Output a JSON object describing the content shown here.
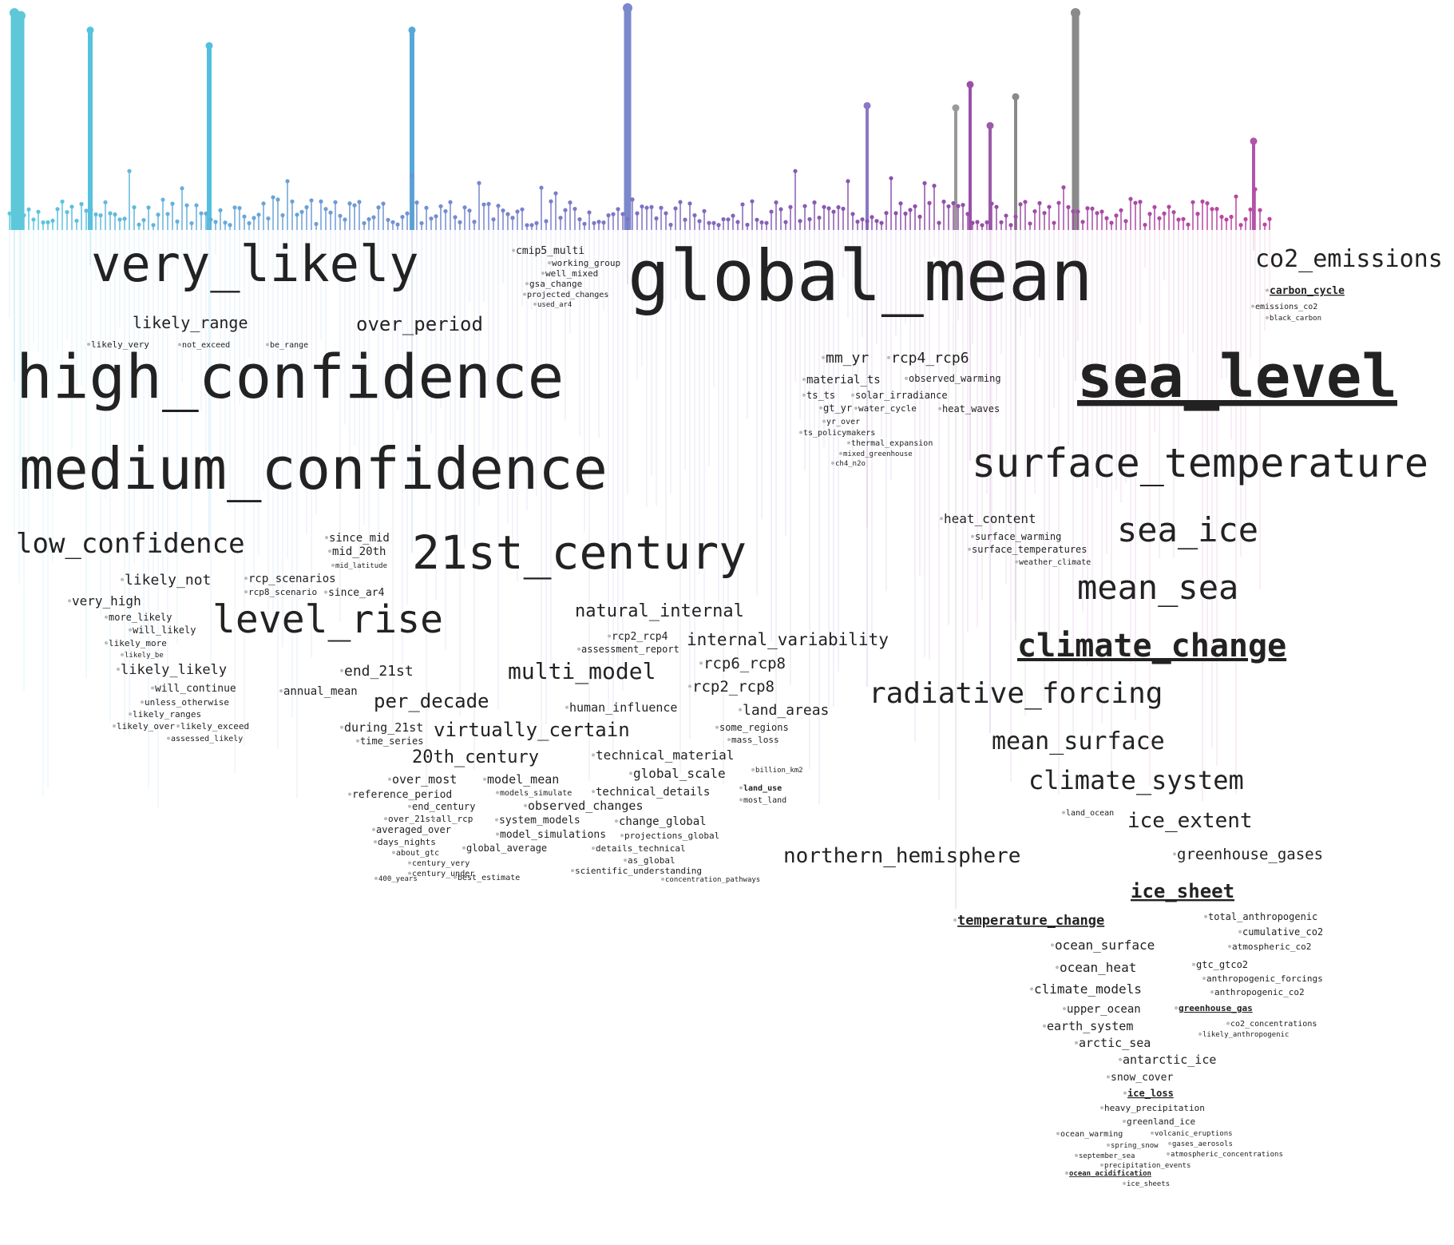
{
  "chart_data": {
    "type": "lollipop-word-cloud",
    "stems": [
      {
        "label": "high_confidence",
        "value": 0.978,
        "color": "#5ec8d8"
      },
      {
        "label": "medium_confidence",
        "value": 0.965,
        "color": "#5ec8d8"
      },
      {
        "label": "very_likely",
        "value": 0.9,
        "color": "#56c2dc"
      },
      {
        "label": "low_confidence",
        "value": 0.83,
        "color": "#52bfe0"
      },
      {
        "label": "21st_century",
        "value": 0.9,
        "color": "#56a8d8"
      },
      {
        "label": "global_mean",
        "value": 1.0,
        "color": "#7b88cc"
      },
      {
        "label": "radiative_forcing",
        "value": 0.56,
        "color": "#8a78c4"
      },
      {
        "label": "sea_level",
        "value": 0.978,
        "color": "#8a8a8a"
      },
      {
        "label": "surface_temperature",
        "value": 0.655,
        "color": "#9a4fa8"
      },
      {
        "label": "temperature_change",
        "value": 0.55,
        "color": "#999999"
      },
      {
        "label": "climate_change",
        "value": 0.6,
        "color": "#8a8a8a"
      },
      {
        "label": "mean_surface",
        "value": 0.47,
        "color": "#9a5aa8"
      },
      {
        "label": "co2_emissions",
        "value": 0.4,
        "color": "#b055a8"
      }
    ],
    "words": [
      {
        "t": "very_likely",
        "s": 62
      },
      {
        "t": "high_confidence",
        "s": 76
      },
      {
        "t": "medium_confidence",
        "s": 72
      },
      {
        "t": "low_confidence",
        "s": 34
      },
      {
        "t": "likely_range",
        "s": 20
      },
      {
        "t": "over_period",
        "s": 24
      },
      {
        "t": "likely_very",
        "s": 11
      },
      {
        "t": "not_exceed",
        "s": 10
      },
      {
        "t": "be_range",
        "s": 10
      },
      {
        "t": "21st_century",
        "s": 58
      },
      {
        "t": "level_rise",
        "s": 48
      },
      {
        "t": "likely_not",
        "s": 18
      },
      {
        "t": "very_high",
        "s": 16
      },
      {
        "t": "more_likely",
        "s": 12
      },
      {
        "t": "will_likely",
        "s": 12
      },
      {
        "t": "likely_more",
        "s": 11
      },
      {
        "t": "likely_be",
        "s": 9
      },
      {
        "t": "likely_likely",
        "s": 17
      },
      {
        "t": "will_continue",
        "s": 13
      },
      {
        "t": "unless_otherwise",
        "s": 11
      },
      {
        "t": "likely_ranges",
        "s": 11
      },
      {
        "t": "likely_over",
        "s": 11
      },
      {
        "t": "likely_exceed",
        "s": 11
      },
      {
        "t": "assessed_likely",
        "s": 10
      },
      {
        "t": "since_mid",
        "s": 14
      },
      {
        "t": "mid_20th",
        "s": 14
      },
      {
        "t": "mid_latitude",
        "s": 9
      },
      {
        "t": "rcp_scenarios",
        "s": 14
      },
      {
        "t": "rcp8_scenario",
        "s": 11
      },
      {
        "t": "since_ar4",
        "s": 13
      },
      {
        "t": "end_21st",
        "s": 18
      },
      {
        "t": "annual_mean",
        "s": 14
      },
      {
        "t": "per_decade",
        "s": 24
      },
      {
        "t": "during_21st",
        "s": 15
      },
      {
        "t": "time_series",
        "s": 12
      },
      {
        "t": "20th_century",
        "s": 22
      },
      {
        "t": "over_most",
        "s": 15
      },
      {
        "t": "reference_period",
        "s": 13
      },
      {
        "t": "end_century",
        "s": 12
      },
      {
        "t": "over_21st",
        "s": 11
      },
      {
        "t": "all_rcp",
        "s": 11
      },
      {
        "t": "averaged_over",
        "s": 12
      },
      {
        "t": "days_nights",
        "s": 11
      },
      {
        "t": "about_gtc",
        "s": 10
      },
      {
        "t": "century_very",
        "s": 10
      },
      {
        "t": "century_under",
        "s": 10
      },
      {
        "t": "400_years",
        "s": 9
      },
      {
        "t": "global_mean",
        "s": 88
      },
      {
        "t": "cmip5_multi",
        "s": 13
      },
      {
        "t": "working_group",
        "s": 11
      },
      {
        "t": "well_mixed",
        "s": 11
      },
      {
        "t": "gsa_change",
        "s": 11
      },
      {
        "t": "projected_changes",
        "s": 10
      },
      {
        "t": "used_ar4",
        "s": 9
      },
      {
        "t": "multi_model",
        "s": 28
      },
      {
        "t": "natural_internal",
        "s": 22
      },
      {
        "t": "rcp2_rcp4",
        "s": 13
      },
      {
        "t": "assessment_report",
        "s": 12
      },
      {
        "t": "internal_variability",
        "s": 21
      },
      {
        "t": "human_influence",
        "s": 15
      },
      {
        "t": "virtually_certain",
        "s": 24
      },
      {
        "t": "rcp6_rcp8",
        "s": 19
      },
      {
        "t": "rcp2_rcp8",
        "s": 19
      },
      {
        "t": "land_areas",
        "s": 18
      },
      {
        "t": "some_regions",
        "s": 12
      },
      {
        "t": "mass_loss",
        "s": 11
      },
      {
        "t": "technical_material",
        "s": 16
      },
      {
        "t": "global_scale",
        "s": 16
      },
      {
        "t": "model_mean",
        "s": 15
      },
      {
        "t": "models_simulate",
        "s": 10
      },
      {
        "t": "technical_details",
        "s": 14
      },
      {
        "t": "observed_changes",
        "s": 15
      },
      {
        "t": "system_models",
        "s": 13
      },
      {
        "t": "change_global",
        "s": 14
      },
      {
        "t": "model_simulations",
        "s": 13
      },
      {
        "t": "projections_global",
        "s": 11
      },
      {
        "t": "global_average",
        "s": 12
      },
      {
        "t": "details_technical",
        "s": 11
      },
      {
        "t": "as_global",
        "s": 11
      },
      {
        "t": "scientific_understanding",
        "s": 11
      },
      {
        "t": "best_estimate",
        "s": 10
      },
      {
        "t": "billion_km2",
        "s": 9
      },
      {
        "t": "land_use",
        "s": 10
      },
      {
        "t": "most_land",
        "s": 10
      },
      {
        "t": "northern_hemisphere",
        "s": 26
      },
      {
        "t": "concentration_pathways",
        "s": 9
      },
      {
        "t": "mm_yr",
        "s": 18
      },
      {
        "t": "rcp4_rcp6",
        "s": 18
      },
      {
        "t": "material_ts",
        "s": 14
      },
      {
        "t": "observed_warming",
        "s": 12
      },
      {
        "t": "ts_ts",
        "s": 12
      },
      {
        "t": "solar_irradiance",
        "s": 12
      },
      {
        "t": "gt_yr",
        "s": 12
      },
      {
        "t": "water_cycle",
        "s": 11
      },
      {
        "t": "heat_waves",
        "s": 12
      },
      {
        "t": "yr_over",
        "s": 10
      },
      {
        "t": "ts_policymakers",
        "s": 10
      },
      {
        "t": "thermal_expansion",
        "s": 10
      },
      {
        "t": "mixed_greenhouse",
        "s": 9
      },
      {
        "t": "ch4_n2o",
        "s": 9
      },
      {
        "t": "radiative_forcing",
        "s": 36
      },
      {
        "t": "co2_emissions",
        "s": 30
      },
      {
        "t": "carbon_cycle",
        "s": 13
      },
      {
        "t": "emissions_co2",
        "s": 10
      },
      {
        "t": "black_carbon",
        "s": 9
      },
      {
        "t": "sea_level",
        "s": 74
      },
      {
        "t": "surface_temperature",
        "s": 50
      },
      {
        "t": "sea_ice",
        "s": 42
      },
      {
        "t": "mean_sea",
        "s": 42
      },
      {
        "t": "heat_content",
        "s": 16
      },
      {
        "t": "surface_warming",
        "s": 12
      },
      {
        "t": "surface_temperatures",
        "s": 12
      },
      {
        "t": "weather_climate",
        "s": 10
      },
      {
        "t": "climate_change",
        "s": 40
      },
      {
        "t": "mean_surface",
        "s": 30
      },
      {
        "t": "climate_system",
        "s": 32
      },
      {
        "t": "ice_extent",
        "s": 26
      },
      {
        "t": "land_ocean",
        "s": 10
      },
      {
        "t": "greenhouse_gases",
        "s": 19
      },
      {
        "t": "ice_sheet",
        "s": 24
      },
      {
        "t": "temperature_change",
        "s": 17
      },
      {
        "t": "total_anthropogenic",
        "s": 12
      },
      {
        "t": "cumulative_co2",
        "s": 12
      },
      {
        "t": "atmospheric_co2",
        "s": 11
      },
      {
        "t": "ocean_surface",
        "s": 16
      },
      {
        "t": "ocean_heat",
        "s": 16
      },
      {
        "t": "gtc_gtco2",
        "s": 12
      },
      {
        "t": "anthropogenic_forcings",
        "s": 11
      },
      {
        "t": "anthropogenic_co2",
        "s": 11
      },
      {
        "t": "climate_models",
        "s": 16
      },
      {
        "t": "upper_ocean",
        "s": 14
      },
      {
        "t": "greenhouse_gas",
        "s": 11
      },
      {
        "t": "earth_system",
        "s": 15
      },
      {
        "t": "arctic_sea",
        "s": 15
      },
      {
        "t": "co2_concentrations",
        "s": 10
      },
      {
        "t": "likely_anthropogenic",
        "s": 9
      },
      {
        "t": "antarctic_ice",
        "s": 15
      },
      {
        "t": "snow_cover",
        "s": 13
      },
      {
        "t": "ice_loss",
        "s": 12
      },
      {
        "t": "heavy_precipitation",
        "s": 11
      },
      {
        "t": "greenland_ice",
        "s": 11
      },
      {
        "t": "ocean_warming",
        "s": 10
      },
      {
        "t": "volcanic_eruptions",
        "s": 9
      },
      {
        "t": "gases_aerosols",
        "s": 9
      },
      {
        "t": "spring_snow",
        "s": 9
      },
      {
        "t": "atmospheric_concentrations",
        "s": 9
      },
      {
        "t": "september_sea",
        "s": 9
      },
      {
        "t": "precipitation_events",
        "s": 9
      },
      {
        "t": "ocean_acidification",
        "s": 9
      },
      {
        "t": "ice_sheets",
        "s": 9
      }
    ]
  }
}
